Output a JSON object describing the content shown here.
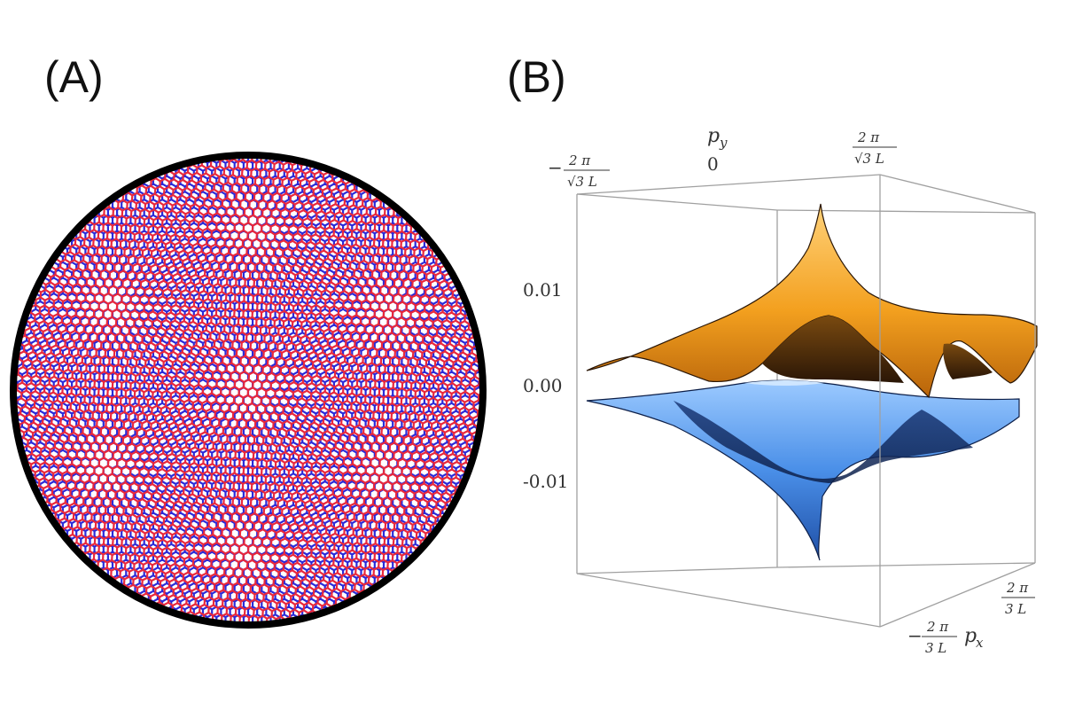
{
  "panel_a": {
    "label": "(A)"
  },
  "panel_b": {
    "label": "(B)",
    "py_axis": {
      "name": "p",
      "name_sub": "y",
      "tick_left_minus": "−",
      "tick_left_num": "2 π",
      "tick_left_den": "√3 L",
      "tick_zero": "0",
      "tick_right_num": "2 π",
      "tick_right_den": "√3 L"
    },
    "px_axis": {
      "name": "p",
      "name_sub": "x",
      "tick_left_minus": "−",
      "tick_left_num": "2 π",
      "tick_left_den": "3 L",
      "tick_right_num": "2 π",
      "tick_right_den": "3 L"
    },
    "energy_ticks": [
      "0.01",
      "0.00",
      "-0.01"
    ]
  },
  "colors": {
    "lattice_red": "#e8283c",
    "lattice_blue": "#2a2ad8",
    "upper_band": "#f5a623",
    "lower_band": "#3f86e6",
    "box": "#9a9a9a"
  }
}
